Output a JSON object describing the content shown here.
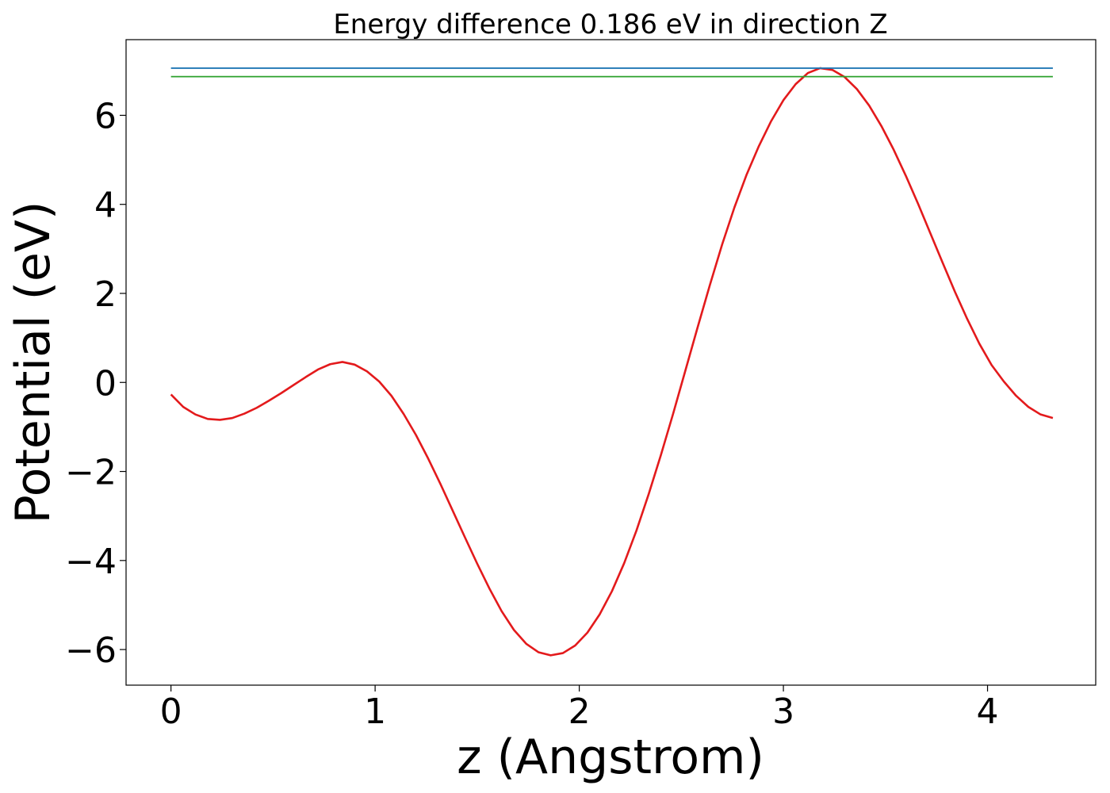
{
  "chart_data": {
    "type": "line",
    "title": "Energy difference 0.186 eV in direction Z",
    "xlabel": "z (Angstrom)",
    "ylabel": "Potential (eV)",
    "xlim": [
      -0.22,
      4.53
    ],
    "ylim": [
      -6.8,
      7.7
    ],
    "xticks": [
      0,
      1,
      2,
      3,
      4
    ],
    "xtick_labels": [
      "0",
      "1",
      "2",
      "3",
      "4"
    ],
    "yticks": [
      -6,
      -4,
      -2,
      0,
      2,
      4,
      6
    ],
    "ytick_labels": [
      "−6",
      "−4",
      "−2",
      "0",
      "2",
      "4",
      "6"
    ],
    "grid": false,
    "legend": "none",
    "series": [
      {
        "color": "#e31a1c",
        "style": "curve",
        "x": [
          0.0,
          0.06,
          0.12,
          0.18,
          0.24,
          0.3,
          0.36,
          0.42,
          0.48,
          0.54,
          0.6,
          0.66,
          0.72,
          0.78,
          0.84,
          0.9,
          0.96,
          1.02,
          1.08,
          1.14,
          1.2,
          1.26,
          1.32,
          1.38,
          1.44,
          1.5,
          1.56,
          1.62,
          1.68,
          1.74,
          1.8,
          1.86,
          1.92,
          1.98,
          2.04,
          2.1,
          2.16,
          2.22,
          2.28,
          2.34,
          2.4,
          2.46,
          2.52,
          2.58,
          2.64,
          2.7,
          2.76,
          2.82,
          2.88,
          2.94,
          3.0,
          3.06,
          3.12,
          3.18,
          3.24,
          3.3,
          3.36,
          3.42,
          3.48,
          3.54,
          3.6,
          3.66,
          3.72,
          3.78,
          3.84,
          3.9,
          3.96,
          4.02,
          4.08,
          4.14,
          4.2,
          4.26,
          4.32
        ],
        "y": [
          -0.27,
          -0.55,
          -0.72,
          -0.82,
          -0.84,
          -0.8,
          -0.7,
          -0.57,
          -0.41,
          -0.24,
          -0.06,
          0.12,
          0.29,
          0.41,
          0.46,
          0.4,
          0.25,
          0.02,
          -0.3,
          -0.71,
          -1.18,
          -1.71,
          -2.28,
          -2.88,
          -3.48,
          -4.07,
          -4.63,
          -5.14,
          -5.56,
          -5.87,
          -6.06,
          -6.13,
          -6.08,
          -5.91,
          -5.62,
          -5.21,
          -4.69,
          -4.06,
          -3.33,
          -2.51,
          -1.63,
          -0.7,
          0.27,
          1.24,
          2.19,
          3.1,
          3.93,
          4.67,
          5.31,
          5.87,
          6.34,
          6.7,
          6.95,
          7.06,
          7.02,
          6.86,
          6.59,
          6.22,
          5.76,
          5.23,
          4.64,
          4.01,
          3.35,
          2.69,
          2.04,
          1.43,
          0.87,
          0.39,
          0.02,
          -0.3,
          -0.55,
          -0.72,
          -0.8
        ]
      },
      {
        "color": "#1f77b4",
        "style": "flat",
        "x": [
          0.0,
          4.32
        ],
        "y": [
          7.06,
          7.06
        ]
      },
      {
        "color": "#2ca02c",
        "style": "flat",
        "x": [
          0.0,
          4.32
        ],
        "y": [
          6.87,
          6.87
        ]
      }
    ]
  }
}
